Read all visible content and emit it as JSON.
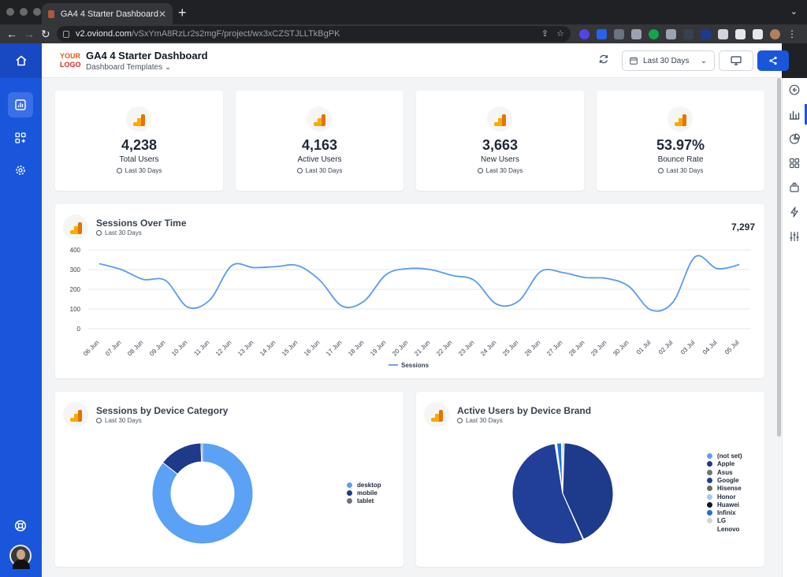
{
  "browser": {
    "tab_title": "GA4 4 Starter Dashboard",
    "url_host": "v2.oviond.com",
    "url_path": "/vSxYmA8RzLr2s2mgF/project/wx3xCZSTJLLTkBgPK"
  },
  "header": {
    "logo_line1": "YOUR",
    "logo_line2": "LOGO",
    "title": "GA4 4 Starter Dashboard",
    "subtitle": "Dashboard Templates",
    "date_range": "Last 30 Days"
  },
  "kpis": [
    {
      "value": "4,238",
      "label": "Total Users",
      "period": "Last 30 Days"
    },
    {
      "value": "4,163",
      "label": "Active Users",
      "period": "Last 30 Days"
    },
    {
      "value": "3,663",
      "label": "New Users",
      "period": "Last 30 Days"
    },
    {
      "value": "53.97%",
      "label": "Bounce Rate",
      "period": "Last 30 Days"
    }
  ],
  "sessions_card": {
    "title": "Sessions Over Time",
    "period": "Last 30 Days",
    "total": "7,297"
  },
  "device_card": {
    "title": "Sessions by Device Category",
    "period": "Last 30 Days"
  },
  "brand_card": {
    "title": "Active Users by Device Brand",
    "period": "Last 30 Days"
  },
  "chart_data": [
    {
      "type": "line",
      "title": "Sessions Over Time",
      "x": [
        "06 Jun",
        "07 Jun",
        "08 Jun",
        "09 Jun",
        "10 Jun",
        "11 Jun",
        "12 Jun",
        "13 Jun",
        "14 Jun",
        "15 Jun",
        "16 Jun",
        "17 Jun",
        "18 Jun",
        "19 Jun",
        "20 Jun",
        "21 Jun",
        "22 Jun",
        "23 Jun",
        "24 Jun",
        "25 Jun",
        "26 Jun",
        "27 Jun",
        "28 Jun",
        "29 Jun",
        "30 Jun",
        "01 Jul",
        "02 Jul",
        "03 Jul",
        "04 Jul",
        "05 Jul"
      ],
      "series": [
        {
          "name": "Sessions",
          "values": [
            330,
            300,
            250,
            245,
            110,
            145,
            320,
            310,
            315,
            320,
            245,
            115,
            140,
            275,
            305,
            300,
            270,
            245,
            125,
            140,
            290,
            285,
            260,
            255,
            215,
            95,
            135,
            365,
            305,
            325
          ]
        }
      ],
      "y_ticks": [
        0,
        100,
        200,
        300,
        400
      ],
      "ylim": [
        0,
        400
      ],
      "grid": true,
      "legend": "bottom",
      "color": "#5b9bf0"
    },
    {
      "type": "pie",
      "title": "Sessions by Device Category",
      "donut": true,
      "labels": [
        "desktop",
        "mobile",
        "tablet"
      ],
      "values": [
        85.5,
        14.0,
        0.5
      ],
      "colors": [
        "#5ba1f5",
        "#1e3a8a",
        "#6b7280"
      ],
      "legend": "right"
    },
    {
      "type": "pie",
      "title": "Active Users by Device Brand",
      "labels": [
        "(not set)",
        "Apple",
        "Asus",
        "Google",
        "Hisense",
        "Honor",
        "Huawei",
        "Infinix",
        "LG",
        "Lenovo"
      ],
      "values": [
        0.5,
        43.0,
        0.2,
        54.5,
        0.2,
        0.2,
        0.2,
        1.5,
        0.2,
        0.2
      ],
      "colors": [
        "#5ba1f5",
        "#1e3a8a",
        "#6b7280",
        "#213f96",
        "#6b6b6b",
        "#a5c8f5",
        "#0f172a",
        "#1d6fe0",
        "#d1d5db",
        "#ffffff"
      ],
      "legend": "right"
    }
  ]
}
